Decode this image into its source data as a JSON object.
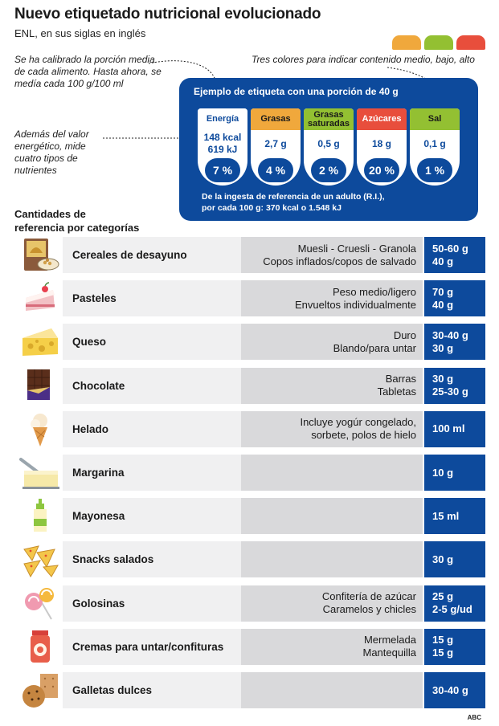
{
  "title": "Nuevo etiquetado nutricional evolucionado",
  "subtitle": "ENL, en sus siglas en inglés",
  "colors": {
    "medium": "#f0a83c",
    "low": "#93c032",
    "high": "#e84e3c",
    "brand_blue": "#0d4a9c"
  },
  "notes": {
    "portion": "Se ha calibrado la porción media de cada alimento. Hasta ahora, se medía cada 100 g/100 ml",
    "colors": "Tres colores para indicar contenido medio, bajo, alto",
    "nutrients": "Además del valor energético, mide cuatro tipos de nutrientes"
  },
  "label": {
    "heading": "Ejemplo de etiqueta con una porción de 40 g",
    "items": [
      {
        "name": "Energía",
        "value_1": "148 kcal",
        "value_2": "619 kJ",
        "percent": "7 %",
        "color": "#ffffff",
        "text_color": "#0d4a9c"
      },
      {
        "name": "Grasas",
        "value_1": "2,7 g",
        "value_2": "",
        "percent": "4 %",
        "color": "#f0a83c",
        "text_color": "#1a1a1a"
      },
      {
        "name": "Grasas saturadas",
        "value_1": "0,5 g",
        "value_2": "",
        "percent": "2 %",
        "color": "#93c032",
        "text_color": "#1a1a1a"
      },
      {
        "name": "Azúcares",
        "value_1": "18 g",
        "value_2": "",
        "percent": "20 %",
        "color": "#e84e3c",
        "text_color": "#ffffff"
      },
      {
        "name": "Sal",
        "value_1": "0,1 g",
        "value_2": "",
        "percent": "1 %",
        "color": "#93c032",
        "text_color": "#1a1a1a"
      }
    ],
    "footnote_1": "De la ingesta de referencia de un adulto (R.I.),",
    "footnote_2": "por cada 100 g: 370 kcal o 1.548 kJ"
  },
  "categories_heading_1": "Cantidades de",
  "categories_heading_2": "referencia por categorías",
  "categories": [
    {
      "icon": "cereal-box-icon",
      "name": "Cereales de desayuno",
      "desc": [
        "Muesli - Cruesli - Granola",
        "Copos inflados/copos de salvado"
      ],
      "amount": [
        "50-60 g",
        "40 g"
      ]
    },
    {
      "icon": "cake-slice-icon",
      "name": "Pasteles",
      "desc": [
        "Peso medio/ligero",
        "Envueltos individualmente"
      ],
      "amount": [
        "70 g",
        "40 g"
      ]
    },
    {
      "icon": "cheese-icon",
      "name": "Queso",
      "desc": [
        "Duro",
        "Blando/para untar"
      ],
      "amount": [
        "30-40 g",
        "30 g"
      ]
    },
    {
      "icon": "chocolate-bar-icon",
      "name": "Chocolate",
      "desc": [
        "Barras",
        "Tabletas"
      ],
      "amount": [
        "30 g",
        "25-30 g"
      ]
    },
    {
      "icon": "ice-cream-cone-icon",
      "name": "Helado",
      "desc": [
        "Incluye yogúr congelado,",
        "sorbete, polos de hielo"
      ],
      "amount": [
        "100 ml"
      ]
    },
    {
      "icon": "margarine-tub-icon",
      "name": "Margarina",
      "desc": [],
      "amount": [
        "10 g"
      ]
    },
    {
      "icon": "mayonnaise-bottle-icon",
      "name": "Mayonesa",
      "desc": [],
      "amount": [
        "15 ml"
      ]
    },
    {
      "icon": "nachos-icon",
      "name": "Snacks salados",
      "desc": [],
      "amount": [
        "30 g"
      ]
    },
    {
      "icon": "lollipop-icon",
      "name": "Golosinas",
      "desc": [
        "Confitería de azúcar",
        "Caramelos y chicles"
      ],
      "amount": [
        "25 g",
        "2-5 g/ud"
      ]
    },
    {
      "icon": "jam-jar-icon",
      "name": "Cremas para untar/confituras",
      "desc": [
        "Mermelada",
        "Mantequilla"
      ],
      "amount": [
        "15 g",
        "15 g"
      ]
    },
    {
      "icon": "cookies-icon",
      "name": "Galletas dulces",
      "desc": [],
      "amount": [
        "30-40 g"
      ]
    }
  ],
  "source": "ABC"
}
